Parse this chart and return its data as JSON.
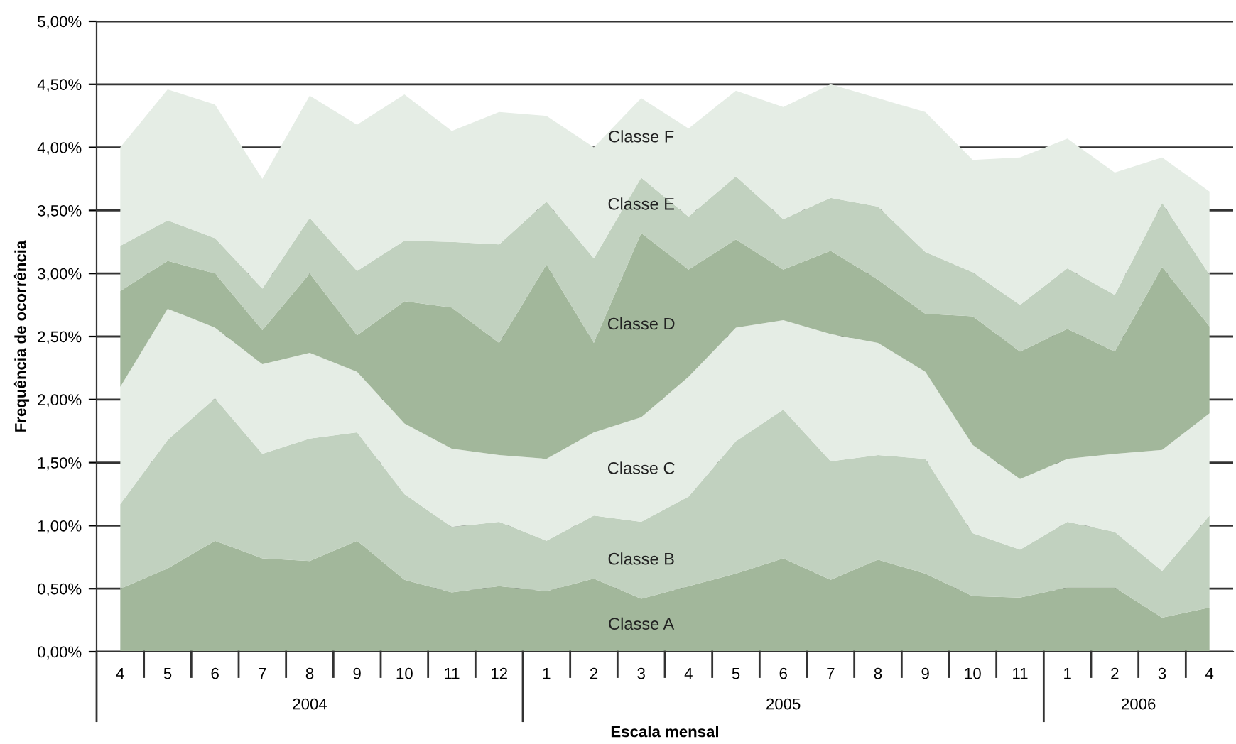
{
  "chart_data": {
    "type": "area",
    "stacked": true,
    "xlabel": "Escala mensal",
    "ylabel": "Frequência de ocorrência",
    "categories": [
      "4",
      "5",
      "6",
      "7",
      "8",
      "9",
      "10",
      "11",
      "12",
      "1",
      "2",
      "3",
      "4",
      "5",
      "6",
      "7",
      "8",
      "9",
      "10",
      "11",
      "1",
      "2",
      "3",
      "4"
    ],
    "series": [
      {
        "name": "Classe A",
        "color": "#a2b79b",
        "values": [
          0.5,
          0.66,
          0.88,
          0.74,
          0.72,
          0.88,
          0.57,
          0.47,
          0.52,
          0.48,
          0.58,
          0.42,
          0.52,
          0.62,
          0.74,
          0.57,
          0.73,
          0.62,
          0.44,
          0.43,
          0.51,
          0.51,
          0.27,
          0.35
        ]
      },
      {
        "name": "Classe B",
        "color": "#c1d1bf",
        "values": [
          0.67,
          1.02,
          1.13,
          0.83,
          0.97,
          0.86,
          0.68,
          0.52,
          0.51,
          0.4,
          0.5,
          0.61,
          0.71,
          1.05,
          1.18,
          0.94,
          0.83,
          0.91,
          0.5,
          0.38,
          0.52,
          0.44,
          0.37,
          0.73
        ]
      },
      {
        "name": "Classe C",
        "color": "#e5ede5",
        "values": [
          0.93,
          1.04,
          0.56,
          0.71,
          0.68,
          0.48,
          0.56,
          0.62,
          0.53,
          0.65,
          0.66,
          0.83,
          0.95,
          0.9,
          0.71,
          1.01,
          0.89,
          0.69,
          0.7,
          0.56,
          0.5,
          0.62,
          0.96,
          0.81
        ]
      },
      {
        "name": "Classe D",
        "color": "#a2b79b",
        "values": [
          0.76,
          0.38,
          0.43,
          0.27,
          0.63,
          0.29,
          0.97,
          1.12,
          0.89,
          1.54,
          0.71,
          1.46,
          0.85,
          0.7,
          0.4,
          0.66,
          0.5,
          0.46,
          1.02,
          1.01,
          1.03,
          0.81,
          1.45,
          0.69
        ]
      },
      {
        "name": "Classe E",
        "color": "#c1d1bf",
        "values": [
          0.36,
          0.32,
          0.28,
          0.33,
          0.44,
          0.51,
          0.48,
          0.52,
          0.78,
          0.5,
          0.67,
          0.44,
          0.42,
          0.5,
          0.4,
          0.42,
          0.58,
          0.49,
          0.35,
          0.37,
          0.48,
          0.45,
          0.51,
          0.41
        ]
      },
      {
        "name": "Classe F",
        "color": "#e5ede5",
        "values": [
          0.78,
          1.04,
          1.06,
          0.87,
          0.97,
          1.16,
          1.16,
          0.88,
          1.05,
          0.68,
          0.88,
          0.63,
          0.7,
          0.68,
          0.89,
          0.9,
          0.86,
          1.11,
          0.89,
          1.17,
          1.03,
          0.97,
          0.36,
          0.66
        ]
      }
    ],
    "ylim": [
      0,
      5
    ],
    "yticks": [
      {
        "value": 0,
        "label": "0,00%"
      },
      {
        "value": 0.5,
        "label": "0,50%"
      },
      {
        "value": 1,
        "label": "1,00%"
      },
      {
        "value": 1.5,
        "label": "1,50%"
      },
      {
        "value": 2,
        "label": "2,00%"
      },
      {
        "value": 2.5,
        "label": "2,50%"
      },
      {
        "value": 3,
        "label": "3,00%"
      },
      {
        "value": 3.5,
        "label": "3,50%"
      },
      {
        "value": 4,
        "label": "4,00%"
      },
      {
        "value": 4.5,
        "label": "4,50%"
      },
      {
        "value": 5,
        "label": "5,00%"
      }
    ],
    "grid": "y",
    "legend": false,
    "annotations": [
      "2004",
      "2005",
      "2006"
    ]
  }
}
